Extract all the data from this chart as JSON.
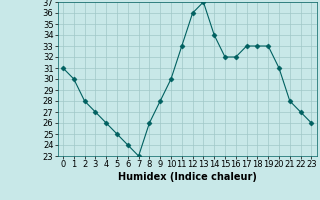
{
  "x": [
    0,
    1,
    2,
    3,
    4,
    5,
    6,
    7,
    8,
    9,
    10,
    11,
    12,
    13,
    14,
    15,
    16,
    17,
    18,
    19,
    20,
    21,
    22,
    23
  ],
  "y": [
    31,
    30,
    28,
    27,
    26,
    25,
    24,
    23,
    26,
    28,
    30,
    33,
    36,
    37,
    34,
    32,
    32,
    33,
    33,
    33,
    31,
    28,
    27,
    26
  ],
  "xlabel": "Humidex (Indice chaleur)",
  "ylabel": "",
  "ylim": [
    23,
    37
  ],
  "xlim": [
    -0.5,
    23.5
  ],
  "yticks": [
    23,
    24,
    25,
    26,
    27,
    28,
    29,
    30,
    31,
    32,
    33,
    34,
    35,
    36,
    37
  ],
  "xticks": [
    0,
    1,
    2,
    3,
    4,
    5,
    6,
    7,
    8,
    9,
    10,
    11,
    12,
    13,
    14,
    15,
    16,
    17,
    18,
    19,
    20,
    21,
    22,
    23
  ],
  "line_color": "#006060",
  "marker": "D",
  "marker_size": 2.5,
  "bg_color": "#c8e8e8",
  "grid_color": "#a0c8c8",
  "axis_fontsize": 7,
  "tick_fontsize": 6
}
